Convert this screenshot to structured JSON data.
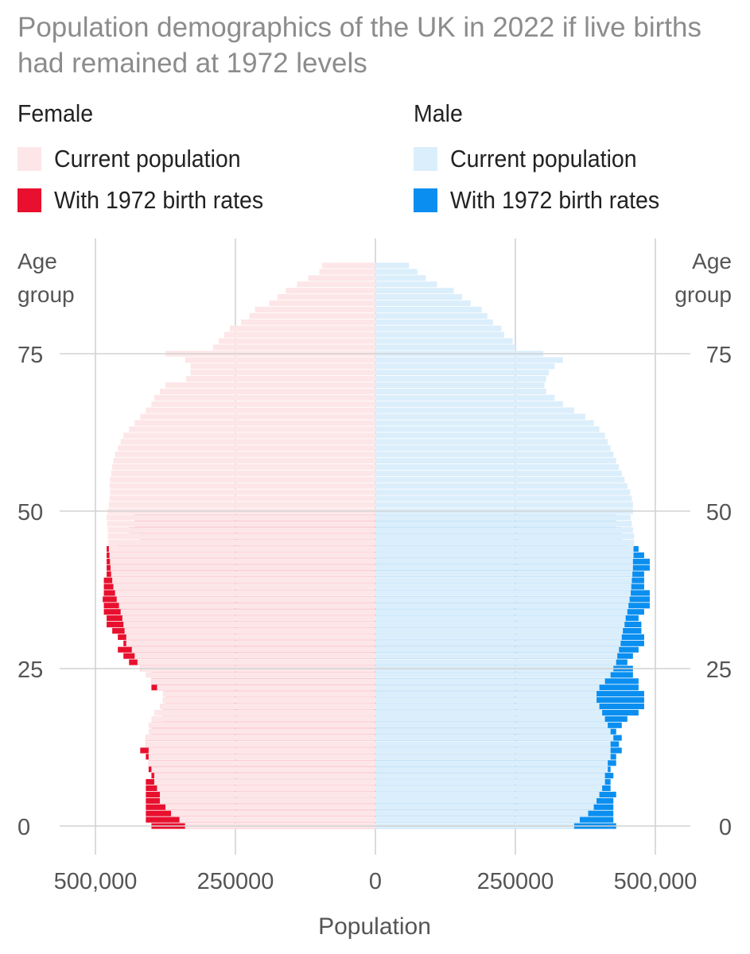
{
  "title": "Population demographics of the UK in 2022 if live births had remained at 1972 levels",
  "legend": {
    "female": {
      "heading": "Female",
      "items": [
        {
          "label": "Current population",
          "color": "#fde6e8"
        },
        {
          "label": "With 1972 birth rates",
          "color": "#e8102e"
        }
      ]
    },
    "male": {
      "heading": "Male",
      "items": [
        {
          "label": "Current population",
          "color": "#dbeefb"
        },
        {
          "label": "With 1972 birth rates",
          "color": "#0a8ff0"
        }
      ]
    }
  },
  "chart_data": {
    "type": "bar",
    "orientation": "horizontal",
    "title": "Population demographics of the UK in 2022 if live births had remained at 1972 levels",
    "xlabel": "Population",
    "ylabel_left": "Age group",
    "ylabel_right": "Age group",
    "x_ticks_left": [
      "500,000",
      "250000",
      "0"
    ],
    "x_ticks_right": [
      "250000",
      "500,000"
    ],
    "x_tick_values": [
      -500000,
      -250000,
      0,
      250000,
      500000
    ],
    "xlim": [
      -500000,
      500000
    ],
    "y_ticks": [
      "0",
      "25",
      "50",
      "75"
    ],
    "y_tick_values": [
      0,
      25,
      50,
      75
    ],
    "ages": [
      0,
      1,
      2,
      3,
      4,
      5,
      6,
      7,
      8,
      9,
      10,
      11,
      12,
      13,
      14,
      15,
      16,
      17,
      18,
      19,
      20,
      21,
      22,
      23,
      24,
      25,
      26,
      27,
      28,
      29,
      30,
      31,
      32,
      33,
      34,
      35,
      36,
      37,
      38,
      39,
      40,
      41,
      42,
      43,
      44,
      45,
      46,
      47,
      48,
      49,
      50,
      51,
      52,
      53,
      54,
      55,
      56,
      57,
      58,
      59,
      60,
      61,
      62,
      63,
      64,
      65,
      66,
      67,
      68,
      69,
      70,
      71,
      72,
      73,
      74,
      75,
      76,
      77,
      78,
      79,
      80,
      81,
      82,
      83,
      84,
      85,
      86,
      87,
      88,
      89
    ],
    "series": [
      {
        "name": "Female - Current population",
        "values": [
          340000,
          350000,
          365000,
          375000,
          385000,
          385000,
          390000,
          395000,
          395000,
          400000,
          405000,
          405000,
          405000,
          410000,
          410000,
          405000,
          405000,
          400000,
          395000,
          385000,
          380000,
          380000,
          390000,
          400000,
          410000,
          420000,
          425000,
          430000,
          435000,
          445000,
          445000,
          448000,
          450000,
          452000,
          455000,
          458000,
          462000,
          465000,
          468000,
          470000,
          472000,
          473000,
          474000,
          475000,
          476000,
          477000,
          478000,
          478000,
          479000,
          480000,
          478000,
          476000,
          475000,
          474000,
          475000,
          474000,
          472000,
          470000,
          468000,
          465000,
          460000,
          455000,
          450000,
          440000,
          430000,
          420000,
          410000,
          400000,
          395000,
          385000,
          375000,
          338000,
          330000,
          330000,
          340000,
          375000,
          290000,
          280000,
          270000,
          260000,
          240000,
          225000,
          215000,
          190000,
          175000,
          160000,
          140000,
          120000,
          100000,
          95000
        ]
      },
      {
        "name": "Female - With 1972 birth rates",
        "values": [
          400000,
          410000,
          410000,
          410000,
          410000,
          410000,
          410000,
          410000,
          400000,
          405000,
          405000,
          410000,
          420000,
          410000,
          410000,
          400000,
          400000,
          380000,
          380000,
          380000,
          375000,
          375000,
          400000,
          400000,
          400000,
          420000,
          440000,
          450000,
          460000,
          450000,
          460000,
          470000,
          480000,
          480000,
          485000,
          485000,
          487000,
          485000,
          485000,
          485000,
          480000,
          480000,
          480000,
          480000,
          480000,
          460000,
          420000,
          440000,
          430000,
          430000,
          null,
          null,
          null,
          null,
          null,
          null,
          null,
          null,
          null,
          null,
          null,
          null,
          null,
          null,
          null,
          null,
          null,
          null,
          null,
          null,
          null,
          null,
          null,
          null,
          null,
          null,
          null,
          null,
          null,
          null,
          null,
          null,
          null,
          null,
          null,
          null,
          null,
          null,
          null,
          null
        ]
      },
      {
        "name": "Male - Current population",
        "values": [
          355000,
          365000,
          380000,
          390000,
          395000,
          400000,
          405000,
          410000,
          410000,
          415000,
          415000,
          420000,
          420000,
          420000,
          425000,
          420000,
          415000,
          410000,
          405000,
          400000,
          395000,
          395000,
          400000,
          410000,
          420000,
          425000,
          430000,
          432000,
          435000,
          438000,
          440000,
          442000,
          445000,
          447000,
          450000,
          452000,
          454000,
          456000,
          457000,
          458000,
          459000,
          460000,
          460000,
          461000,
          461000,
          462000,
          462000,
          460000,
          458000,
          456000,
          460000,
          460000,
          458000,
          455000,
          450000,
          445000,
          440000,
          435000,
          430000,
          425000,
          420000,
          415000,
          410000,
          400000,
          390000,
          375000,
          355000,
          335000,
          320000,
          305000,
          302000,
          305000,
          310000,
          320000,
          335000,
          300000,
          250000,
          245000,
          230000,
          225000,
          210000,
          200000,
          190000,
          170000,
          155000,
          140000,
          110000,
          90000,
          75000,
          60000
        ]
      },
      {
        "name": "Male - With 1972 birth rates",
        "values": [
          430000,
          425000,
          425000,
          425000,
          425000,
          430000,
          420000,
          420000,
          425000,
          420000,
          430000,
          430000,
          440000,
          435000,
          440000,
          430000,
          440000,
          450000,
          470000,
          480000,
          480000,
          480000,
          470000,
          470000,
          460000,
          460000,
          450000,
          460000,
          470000,
          480000,
          480000,
          475000,
          475000,
          470000,
          480000,
          490000,
          490000,
          490000,
          480000,
          480000,
          480000,
          490000,
          490000,
          480000,
          470000,
          450000,
          440000,
          440000,
          430000,
          430000,
          null,
          null,
          null,
          null,
          null,
          null,
          null,
          null,
          null,
          null,
          null,
          null,
          null,
          null,
          null,
          null,
          null,
          null,
          null,
          null,
          null,
          null,
          null,
          null,
          null,
          null,
          null,
          null,
          null,
          null,
          null,
          null,
          null,
          null,
          null,
          null,
          null,
          null,
          null,
          null
        ]
      }
    ]
  }
}
